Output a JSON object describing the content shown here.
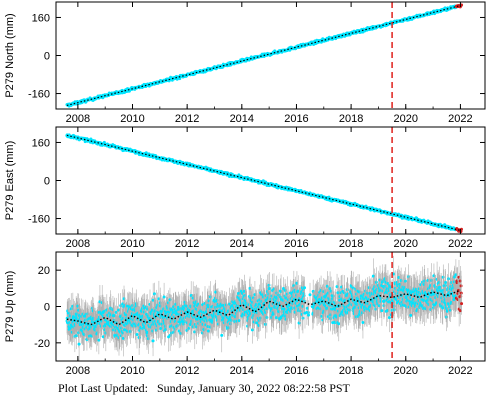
{
  "footer": {
    "label": "Plot Last Updated:",
    "date": "Sunday, January 30, 2022 08:22:58 PST"
  },
  "colors": {
    "data_primary": "#00e5ff",
    "data_error": "#b0b0b0",
    "model": "#000000",
    "marker_line": "#e0201b",
    "recent_points": "#d42020"
  },
  "marker_line_year": 2019.5,
  "chart_data": [
    {
      "type": "scatter",
      "ylabel": "P279 North (mm)",
      "xlim": [
        2007.2,
        2022.9
      ],
      "ylim": [
        -225,
        225
      ],
      "yticks": [
        -160,
        0,
        160
      ],
      "xticks": [
        2008,
        2010,
        2012,
        2014,
        2016,
        2018,
        2020,
        2022
      ],
      "trend": {
        "x": [
          2007.6,
          2022.0
        ],
        "y": [
          -210,
          210
        ]
      },
      "grid": false
    },
    {
      "type": "scatter",
      "ylabel": "P279 East (mm)",
      "xlim": [
        2007.2,
        2022.9
      ],
      "ylim": [
        -225,
        225
      ],
      "yticks": [
        -160,
        0,
        160
      ],
      "xticks": [
        2008,
        2010,
        2012,
        2014,
        2016,
        2018,
        2020,
        2022
      ],
      "trend": {
        "x": [
          2007.6,
          2022.0
        ],
        "y": [
          190,
          -210
        ]
      },
      "grid": false
    },
    {
      "type": "scatter",
      "ylabel": "P279 Up (mm)",
      "xlim": [
        2007.2,
        2022.9
      ],
      "ylim": [
        -30,
        30
      ],
      "yticks": [
        -20,
        0,
        20
      ],
      "xticks": [
        2008,
        2010,
        2012,
        2014,
        2016,
        2018,
        2020,
        2022
      ],
      "model": {
        "x": [
          2007.6,
          2008.0,
          2008.5,
          2009.0,
          2009.5,
          2010.0,
          2010.5,
          2011.0,
          2011.5,
          2012.0,
          2012.5,
          2013.0,
          2013.5,
          2014.0,
          2014.5,
          2015.0,
          2015.5,
          2016.0,
          2016.5,
          2017.0,
          2017.5,
          2018.0,
          2018.5,
          2019.0,
          2019.5,
          2020.0,
          2020.5,
          2021.0,
          2021.5,
          2022.0
        ],
        "y": [
          -7,
          -8,
          -10,
          -6,
          -10,
          -5,
          -9,
          -4,
          -7,
          -3,
          -6,
          -2,
          -5,
          1,
          -3,
          3,
          0,
          4,
          1,
          3,
          0,
          4,
          2,
          6,
          5,
          7,
          5,
          8,
          6,
          9
        ]
      },
      "grid": false
    }
  ]
}
